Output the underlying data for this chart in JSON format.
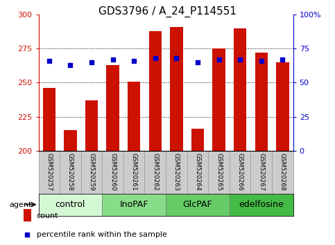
{
  "title": "GDS3796 / A_24_P114551",
  "samples": [
    "GSM520257",
    "GSM520258",
    "GSM520259",
    "GSM520260",
    "GSM520261",
    "GSM520262",
    "GSM520263",
    "GSM520264",
    "GSM520265",
    "GSM520266",
    "GSM520267",
    "GSM520268"
  ],
  "counts": [
    246,
    215,
    237,
    263,
    251,
    288,
    291,
    216,
    275,
    290,
    272,
    265
  ],
  "percentiles": [
    66,
    63,
    65,
    67,
    66,
    68,
    68,
    65,
    67,
    67,
    66,
    67
  ],
  "groups": [
    {
      "label": "control",
      "start": 0,
      "end": 3,
      "color": "#d4f7d4"
    },
    {
      "label": "InoPAF",
      "start": 3,
      "end": 6,
      "color": "#88dd88"
    },
    {
      "label": "GlcPAF",
      "start": 6,
      "end": 9,
      "color": "#66cc66"
    },
    {
      "label": "edelfosine",
      "start": 9,
      "end": 12,
      "color": "#44bb44"
    }
  ],
  "bar_color": "#cc1100",
  "dot_color": "#0000cc",
  "ylim_left": [
    200,
    300
  ],
  "ylim_right": [
    0,
    100
  ],
  "yticks_left": [
    200,
    225,
    250,
    275,
    300
  ],
  "yticks_right": [
    0,
    25,
    50,
    75,
    100
  ],
  "ytick_labels_right": [
    "0",
    "25",
    "50",
    "75",
    "100%"
  ],
  "grid_values": [
    225,
    250,
    275
  ],
  "bar_width": 0.6,
  "legend_count_label": "count",
  "legend_pct_label": "percentile rank within the sample",
  "title_fontsize": 11,
  "tick_fontsize": 8,
  "group_label_fontsize": 9,
  "sample_fontsize": 6.5,
  "axis_color_left": "#cc1100",
  "axis_color_right": "#0000cc",
  "cell_bg": "#cccccc",
  "cell_border": "#999999",
  "agent_label": "agent"
}
